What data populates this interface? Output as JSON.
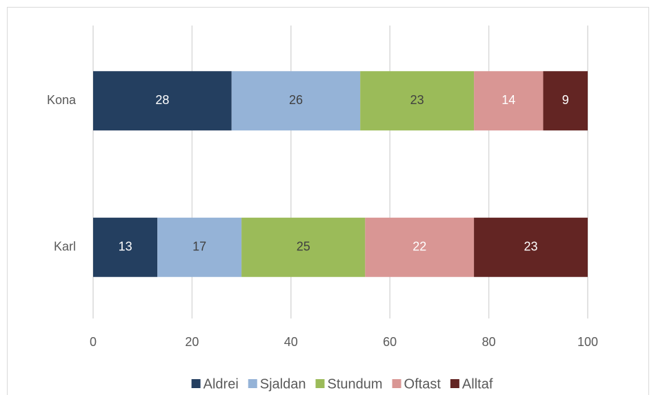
{
  "chart_data": {
    "type": "stacked-bar-horizontal",
    "categories": [
      "Kona",
      "Karl"
    ],
    "series": [
      {
        "name": "Aldrei",
        "color": "#243f60",
        "values": [
          28,
          13
        ]
      },
      {
        "name": "Sjaldan",
        "color": "#95b3d7",
        "values": [
          26,
          17
        ]
      },
      {
        "name": "Stundum",
        "color": "#9bbb59",
        "values": [
          23,
          25
        ]
      },
      {
        "name": "Oftast",
        "color": "#d99694",
        "values": [
          14,
          22
        ]
      },
      {
        "name": "Alltaf",
        "color": "#632523",
        "values": [
          9,
          23
        ]
      }
    ],
    "xlim": [
      0,
      100
    ],
    "xticks": [
      0,
      20,
      40,
      60,
      80,
      100
    ],
    "grid": true,
    "legend": "bottom"
  }
}
